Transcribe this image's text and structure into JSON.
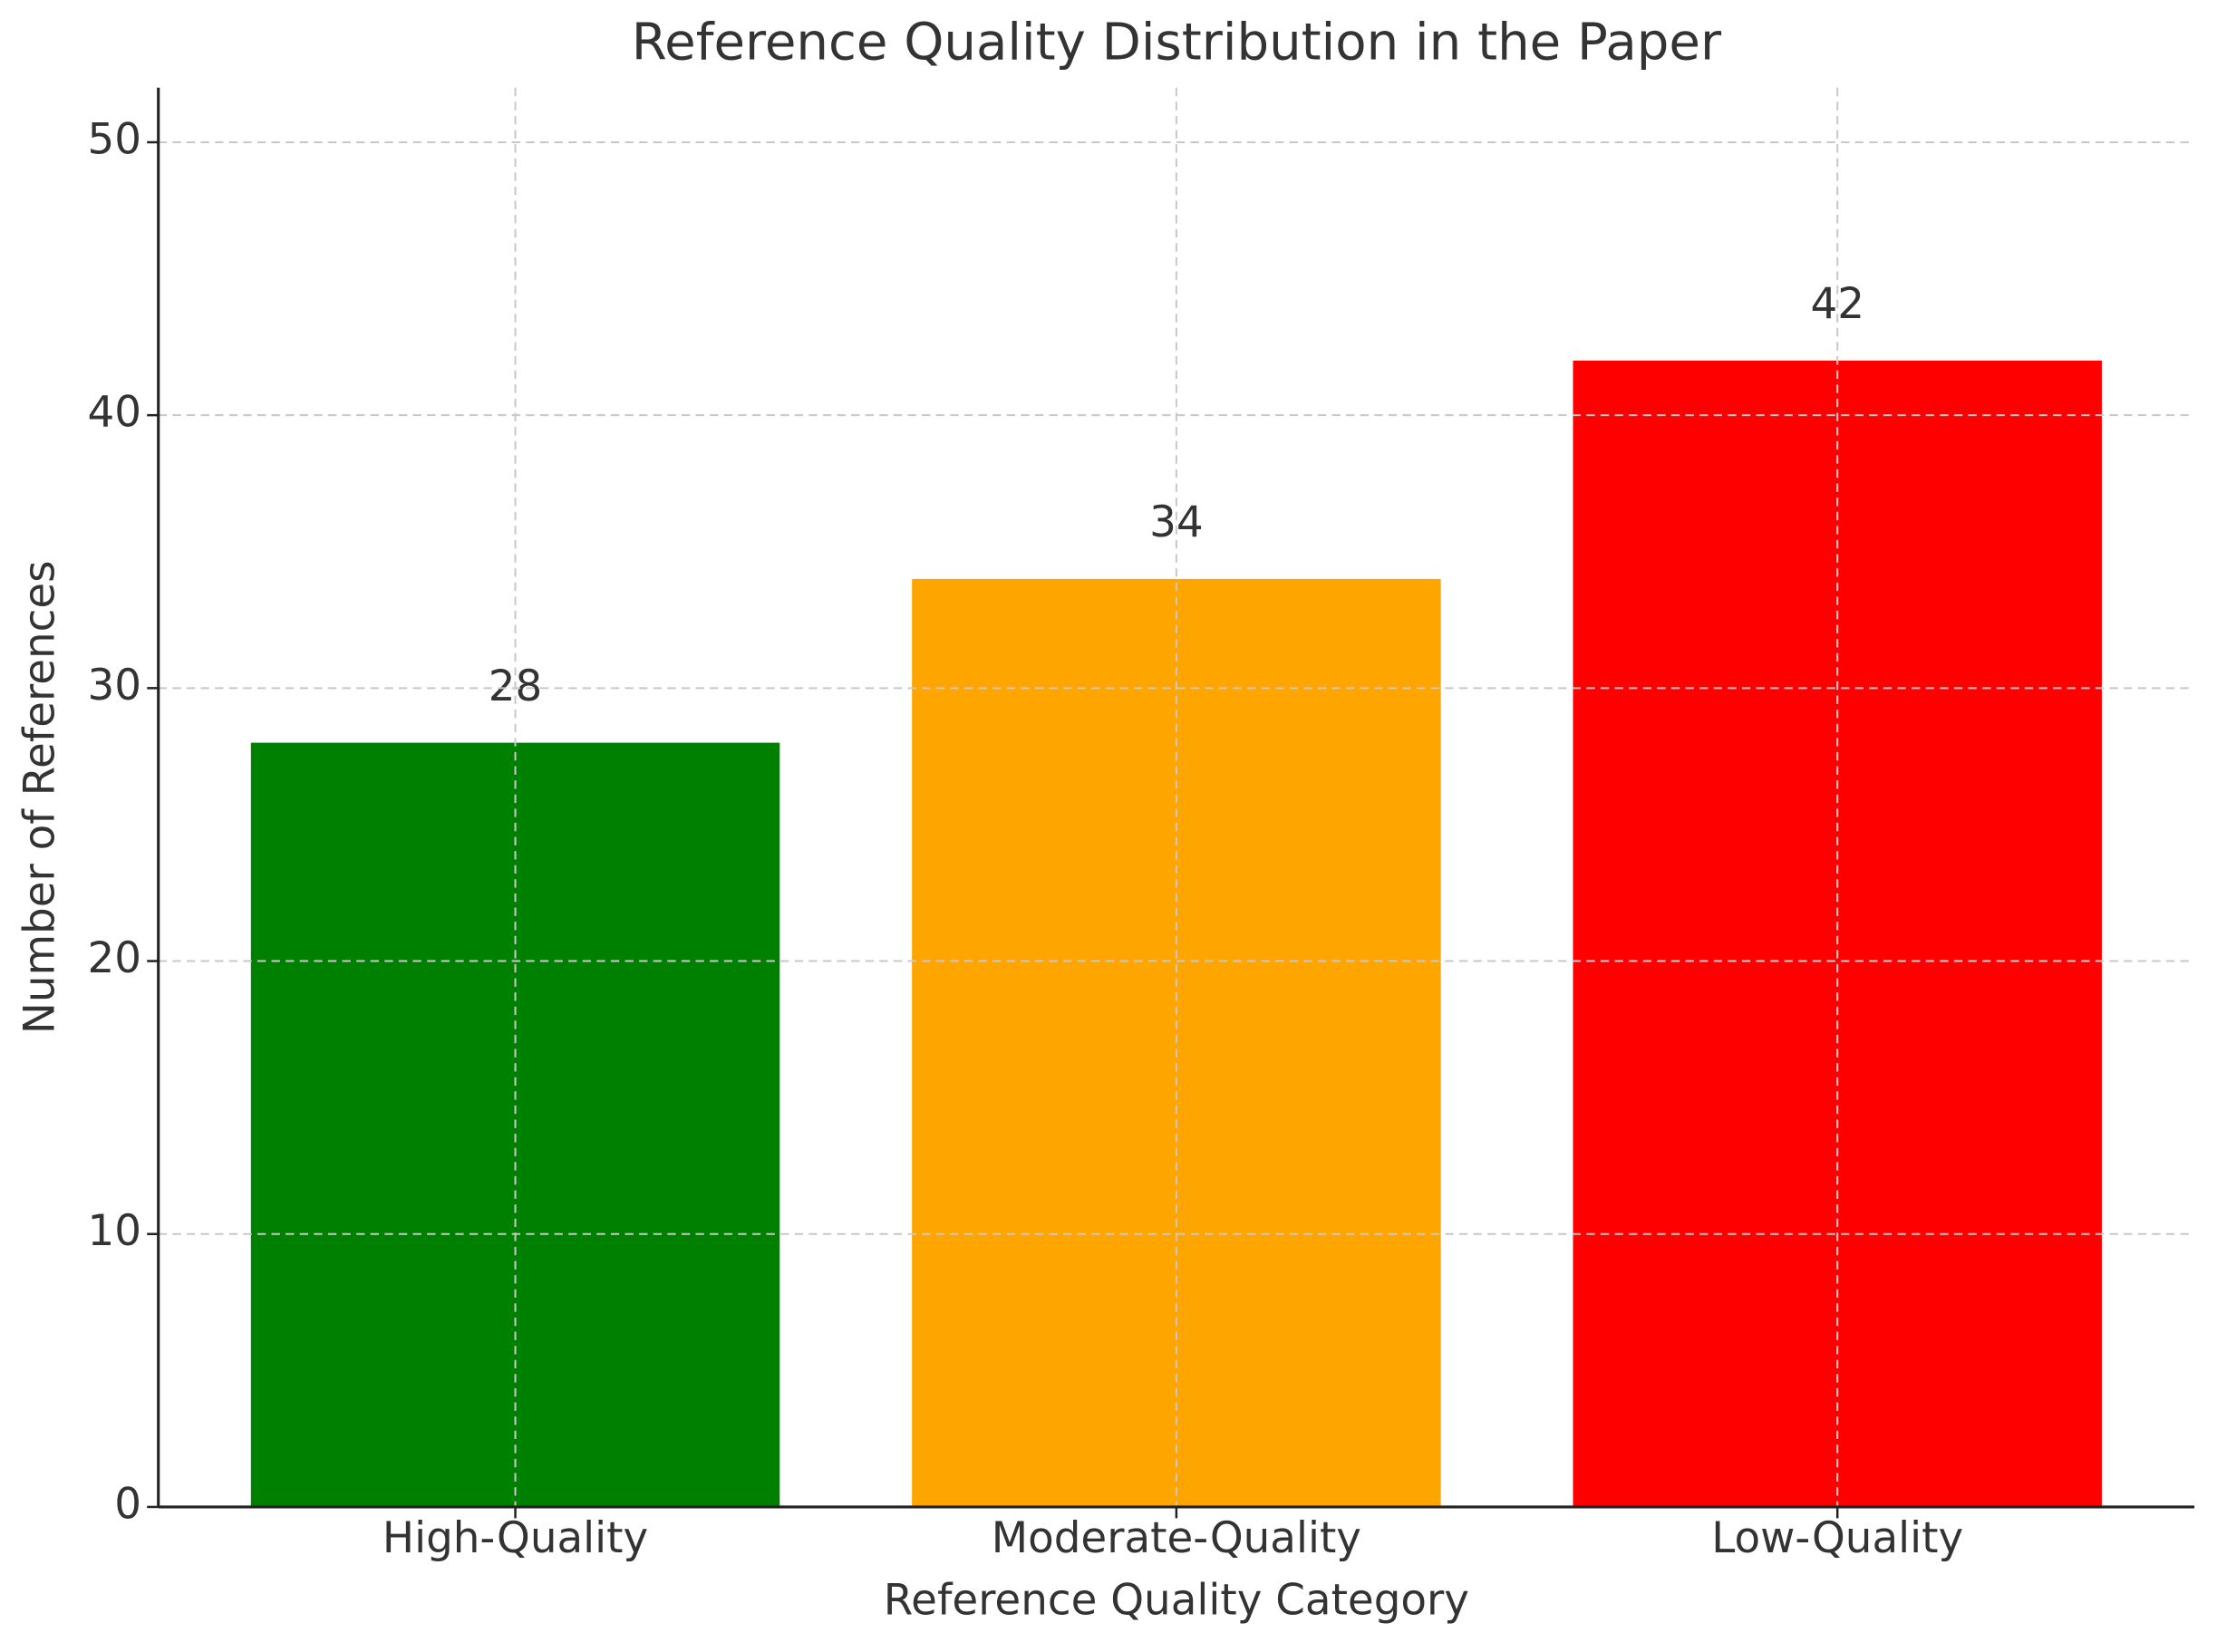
{
  "chart_data": {
    "type": "bar",
    "title": "Reference Quality Distribution in the Paper",
    "x_label": "Reference Quality Category",
    "y_label": "Number of References",
    "categories": [
      "High-Quality",
      "Moderate-Quality",
      "Low-Quality"
    ],
    "values": [
      28,
      34,
      42
    ],
    "colors": [
      "#008000",
      "#ffa500",
      "#ff0000"
    ],
    "ylim": [
      0,
      52
    ],
    "yticks": [
      0,
      10,
      20,
      30,
      40,
      50
    ],
    "grid": true
  }
}
